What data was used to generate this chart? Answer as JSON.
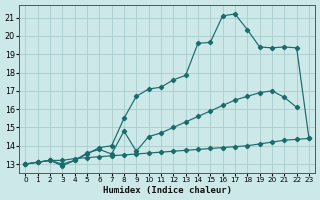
{
  "xlabel": "Humidex (Indice chaleur)",
  "background_color": "#cce8e8",
  "grid_color": "#aacccc",
  "line_color": "#1a6b6b",
  "xlim": [
    -0.5,
    23.5
  ],
  "ylim": [
    12.5,
    21.7
  ],
  "xticks": [
    0,
    1,
    2,
    3,
    4,
    5,
    6,
    7,
    8,
    9,
    10,
    11,
    12,
    13,
    14,
    15,
    16,
    17,
    18,
    19,
    20,
    21,
    22,
    23
  ],
  "yticks": [
    13,
    14,
    15,
    16,
    17,
    18,
    19,
    20,
    21
  ],
  "curve_bottom_x": [
    0,
    1,
    2,
    3,
    4,
    5,
    6,
    7,
    8,
    9,
    10,
    11,
    12,
    13,
    14,
    15,
    16,
    17,
    18,
    19,
    20,
    21,
    22,
    23
  ],
  "curve_bottom_y": [
    13.0,
    13.1,
    13.2,
    13.2,
    13.3,
    13.35,
    13.4,
    13.45,
    13.5,
    13.55,
    13.6,
    13.65,
    13.7,
    13.75,
    13.8,
    13.85,
    13.9,
    13.95,
    14.0,
    14.1,
    14.2,
    14.3,
    14.35,
    14.4
  ],
  "curve_mid_x": [
    0,
    1,
    2,
    3,
    4,
    5,
    6,
    7,
    8,
    9,
    10,
    11,
    12,
    13,
    14,
    15,
    16,
    17,
    18,
    19,
    20,
    21,
    22
  ],
  "curve_mid_y": [
    13.0,
    13.1,
    13.2,
    12.9,
    13.2,
    13.6,
    13.8,
    13.55,
    14.8,
    13.7,
    14.5,
    14.7,
    15.0,
    15.3,
    15.6,
    15.9,
    16.2,
    16.5,
    16.7,
    16.9,
    17.0,
    16.65,
    16.1
  ],
  "curve_top_x": [
    0,
    1,
    2,
    3,
    4,
    5,
    6,
    7,
    8,
    9,
    10,
    11,
    12,
    13,
    14,
    15,
    16,
    17,
    18,
    19,
    20,
    21,
    22,
    23
  ],
  "curve_top_y": [
    13.0,
    13.1,
    13.2,
    13.0,
    13.2,
    13.55,
    13.9,
    14.0,
    15.5,
    16.7,
    17.1,
    17.2,
    17.6,
    17.85,
    19.6,
    19.65,
    21.1,
    21.2,
    20.35,
    19.4,
    19.35,
    19.4,
    19.35,
    14.4
  ]
}
